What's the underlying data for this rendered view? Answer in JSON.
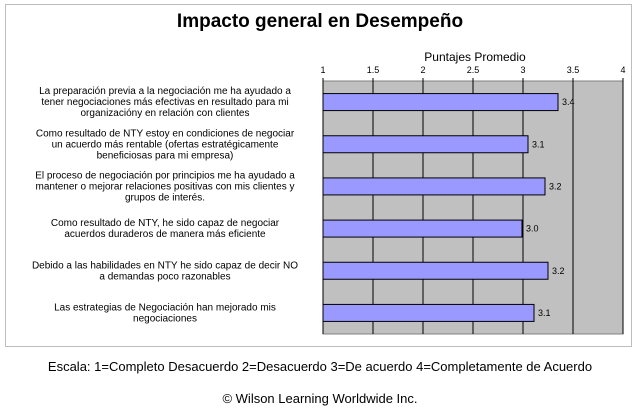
{
  "chart_data": {
    "type": "bar",
    "orientation": "horizontal",
    "title": "Impacto general en Desempeño",
    "xlabel": "Puntajes Promedio",
    "xlim": [
      1,
      4
    ],
    "xticks": [
      "1",
      "1.5",
      "2",
      "2.5",
      "3",
      "3.5",
      "4"
    ],
    "tick_values": [
      1,
      1.5,
      2,
      2.5,
      3,
      3.5,
      4
    ],
    "grid": true,
    "categories": [
      [
        "La preparación previa a la negociación me ha ayudado a",
        "tener negociaciones más efectivas en resultado para mi",
        "organizacióny en relación con clientes"
      ],
      [
        "Como resultado de NTY estoy en condiciones de negociar",
        "un acuerdo más rentable (ofertas estratégicamente",
        "beneficiosas para mi empresa)"
      ],
      [
        "El proceso de negociación por principios me ha ayudado a",
        "mantener o mejorar relaciones positivas con mis clientes y",
        "grupos de interés."
      ],
      [
        "Como resultado de NTY, he sido capaz de negociar",
        "acuerdos duraderos de manera más eficiente"
      ],
      [
        "Debido a las habilidades en NTY he sido capaz de decir NO",
        "a demandas poco razonables"
      ],
      [
        "Las estrategias de Negociación han mejorado mis",
        "negociaciones"
      ]
    ],
    "values": [
      3.35,
      3.05,
      3.22,
      2.99,
      3.25,
      3.11
    ],
    "data_labels": [
      "3.4",
      "3.1",
      "3.2",
      "3.0",
      "3.2",
      "3.1"
    ],
    "colors": {
      "bar": "#9999ff",
      "plot_bg": "#c0c0c0",
      "bar_border": "#000000"
    }
  },
  "scale_text": "Escala: 1=Completo Desacuerdo  2=Desacuerdo  3=De acuerdo  4=Completamente de Acuerdo",
  "copyright": "© Wilson Learning Worldwide Inc."
}
